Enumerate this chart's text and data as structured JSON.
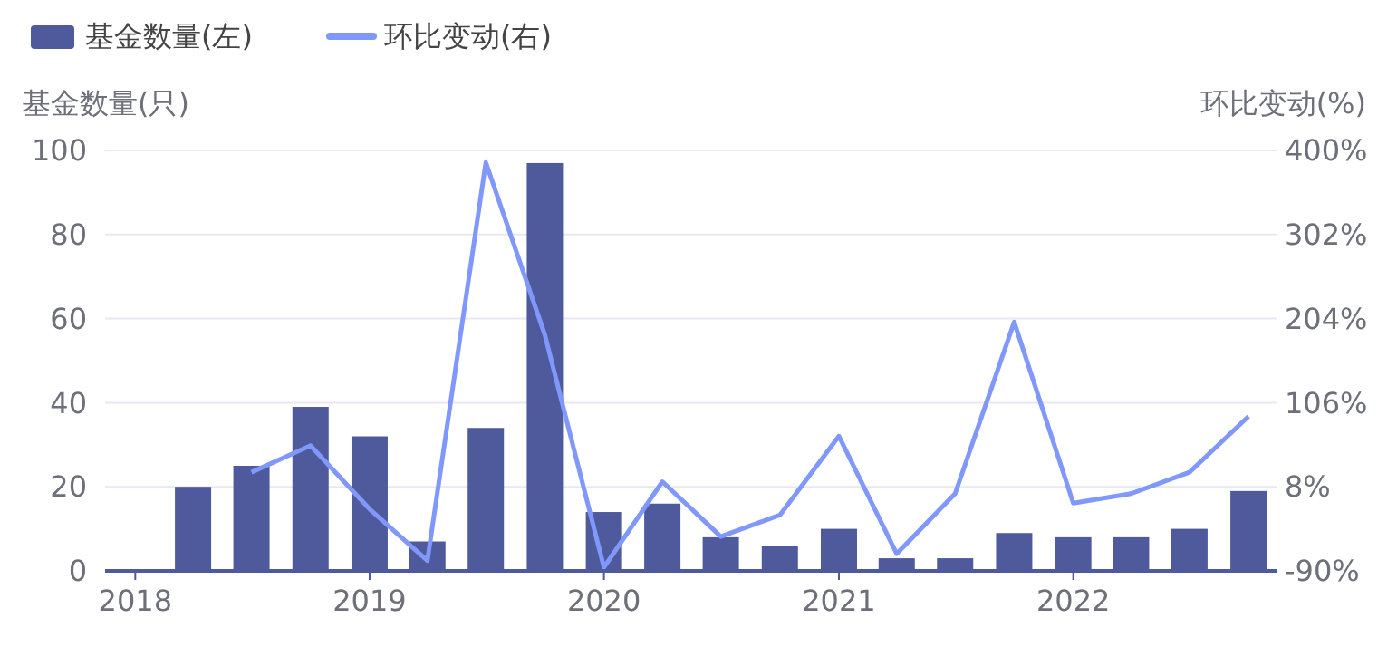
{
  "chart_data": {
    "type": "bar",
    "x": [
      "2018-04",
      "2018-07",
      "2018-10",
      "2019-01",
      "2019-04",
      "2019-07",
      "2019-10",
      "2020-01",
      "2020-04",
      "2020-07",
      "2020-10",
      "2021-01",
      "2021-04",
      "2021-07",
      "2021-10",
      "2022-01",
      "2022-04",
      "2022-07",
      "2022-10"
    ],
    "series": [
      {
        "name": "基金数量(左)",
        "color": "#4e5a9b",
        "values": [
          20,
          25,
          39,
          32,
          7,
          34,
          97,
          14,
          16,
          8,
          6,
          10,
          3,
          3,
          9,
          8,
          8,
          10,
          19
        ]
      },
      {
        "name": "环比变动(右)",
        "type": "line",
        "axis": "y2",
        "color": "#8097fb",
        "values": [
          null,
          25,
          56,
          -18,
          -78,
          386,
          185,
          -86,
          14,
          -50,
          -25,
          67,
          -70,
          0,
          200,
          -11,
          0,
          25,
          90
        ]
      }
    ],
    "ylabel": "基金数量(只)",
    "y2label": "环比变动(%)",
    "xlim": [
      "2017-11-15",
      "2022-11-15"
    ],
    "xticks": [
      "2018",
      "2019",
      "2020",
      "2021",
      "2022"
    ],
    "ylim": [
      0,
      100
    ],
    "yticks": [
      0,
      20,
      40,
      60,
      80,
      100
    ],
    "y2lim": [
      -90,
      400
    ],
    "y2ticks": [
      {
        "value": -90,
        "label": "-90%"
      },
      {
        "value": 8,
        "label": "8%"
      },
      {
        "value": 106,
        "label": "106%"
      },
      {
        "value": 204,
        "label": "204%"
      },
      {
        "value": 302,
        "label": "302%"
      },
      {
        "value": 400,
        "label": "400%"
      }
    ],
    "grid": "y",
    "legend": "top left",
    "marker": "none",
    "line_style": "solid"
  }
}
